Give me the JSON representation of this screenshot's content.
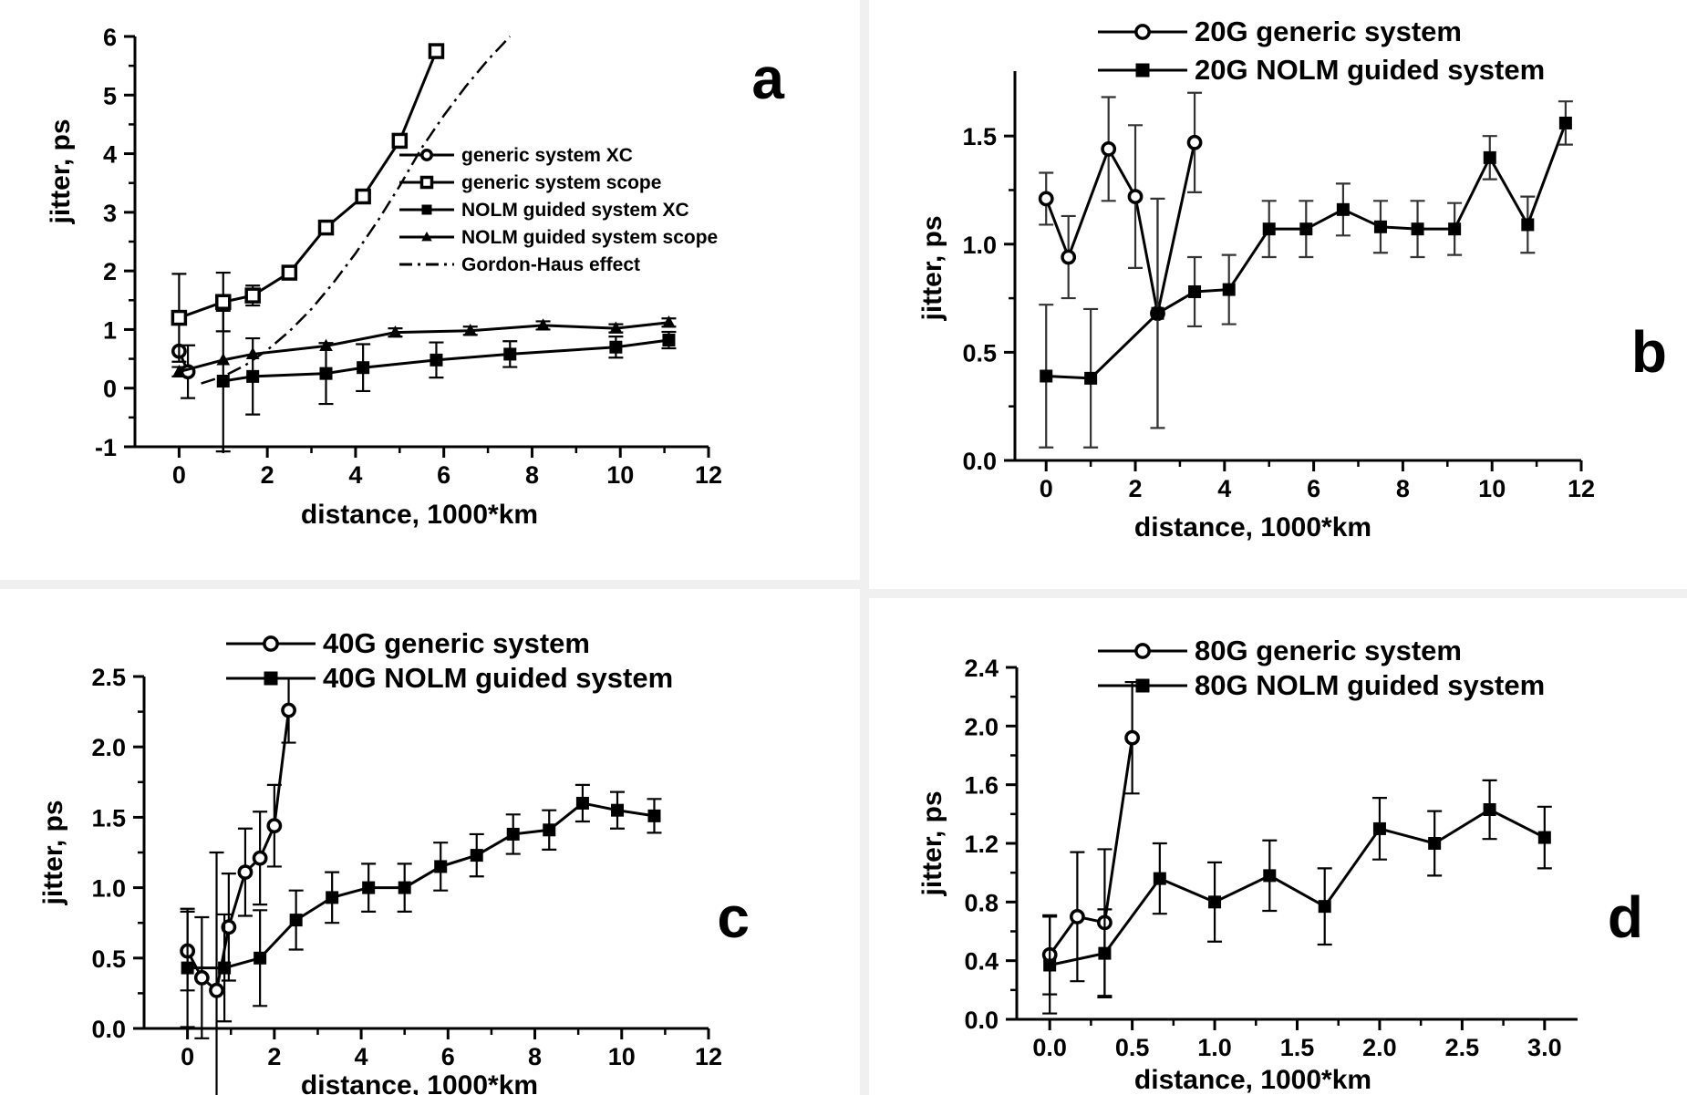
{
  "colors": {
    "ink": "#000000",
    "panel_gap": "#f0f0f0",
    "background": "#ffffff",
    "errorbar_b": "#333333"
  },
  "chart_data": [
    {
      "panel": "a",
      "type": "line",
      "xlabel": "distance, 1000*km",
      "ylabel": "jitter, ps",
      "xlim": [
        -1,
        12
      ],
      "ylim": [
        -1,
        6
      ],
      "xticks": [
        "0",
        "2",
        "4",
        "6",
        "8",
        "10",
        "12"
      ],
      "yticks": [
        "-1",
        "0",
        "1",
        "2",
        "3",
        "4",
        "5",
        "6"
      ],
      "legend_position": "center-right",
      "series": [
        {
          "name": "generic system XC",
          "marker": "circle-open",
          "x": [
            0,
            0.2
          ],
          "y": [
            0.63,
            0.28
          ],
          "err": [
            0.0,
            0.45
          ]
        },
        {
          "name": "generic system scope",
          "marker": "square-open",
          "x": [
            0,
            1,
            1.67,
            2.5,
            3.33,
            4.17,
            5.0,
            5.83
          ],
          "y": [
            1.2,
            1.47,
            1.58,
            1.97,
            2.74,
            3.27,
            4.22,
            5.75
          ],
          "err": [
            0.75,
            0.5,
            0.17,
            0,
            0,
            0,
            0,
            0
          ]
        },
        {
          "name": "NOLM guided system XC",
          "marker": "square-filled",
          "x": [
            1.0,
            1.67,
            3.33,
            4.17,
            5.83,
            7.5,
            9.9,
            11.1
          ],
          "y": [
            0.12,
            0.2,
            0.25,
            0.35,
            0.48,
            0.58,
            0.7,
            0.82
          ],
          "err": [
            1.2,
            0.65,
            0.52,
            0.4,
            0.3,
            0.22,
            0.18,
            0.14
          ]
        },
        {
          "name": "NOLM guided system scope",
          "marker": "triangle-filled",
          "x": [
            0,
            1.0,
            1.67,
            3.33,
            4.9,
            6.6,
            8.25,
            9.9,
            11.1
          ],
          "y": [
            0.28,
            0.48,
            0.58,
            0.72,
            0.95,
            0.98,
            1.07,
            1.02,
            1.12
          ],
          "err": [
            0.08,
            0,
            0,
            0,
            0.07,
            0.07,
            0.07,
            0.07,
            0.07
          ]
        },
        {
          "name": "Gordon-Haus effect",
          "style": "dash-dot",
          "x": [
            0.5,
            1.0,
            1.5,
            2.0,
            2.5,
            3.0,
            3.5,
            4.0,
            4.5,
            5.0,
            5.5,
            6.0,
            6.5,
            7.0,
            7.5
          ],
          "y": [
            0.08,
            0.2,
            0.39,
            0.65,
            0.97,
            1.35,
            1.8,
            2.3,
            2.85,
            3.45,
            4.1,
            4.65,
            5.15,
            5.6,
            6.0
          ]
        }
      ]
    },
    {
      "panel": "b",
      "type": "line",
      "xlabel": "distance, 1000*km",
      "ylabel": "jitter, ps",
      "xlim": [
        -0.7,
        12
      ],
      "ylim": [
        0,
        1.8
      ],
      "xticks": [
        "0",
        "2",
        "4",
        "6",
        "8",
        "10",
        "12"
      ],
      "yticks": [
        "0.0",
        "0.5",
        "1.0",
        "1.5"
      ],
      "legend_position": "top-right",
      "series": [
        {
          "name": "20G generic system",
          "marker": "circle-open",
          "x": [
            0,
            0.5,
            1.4,
            2.0,
            2.5,
            3.33
          ],
          "y": [
            1.21,
            0.94,
            1.44,
            1.22,
            0.68,
            1.47
          ],
          "err": [
            0.12,
            0.19,
            0.24,
            0.33,
            0.53,
            0.23
          ]
        },
        {
          "name": "20G NOLM guided system",
          "marker": "square-filled",
          "x": [
            0,
            1.0,
            2.5,
            3.33,
            4.1,
            5.0,
            5.83,
            6.66,
            7.5,
            8.33,
            9.16,
            9.95,
            10.8,
            11.65
          ],
          "y": [
            0.39,
            0.38,
            0.68,
            0.78,
            0.79,
            1.07,
            1.07,
            1.16,
            1.08,
            1.07,
            1.07,
            1.4,
            1.09,
            1.56
          ],
          "err": [
            0.33,
            0.32,
            0.53,
            0.16,
            0.16,
            0.13,
            0.13,
            0.12,
            0.12,
            0.13,
            0.12,
            0.1,
            0.13,
            0.1
          ]
        }
      ]
    },
    {
      "panel": "c",
      "type": "line",
      "xlabel": "distance, 1000*km",
      "ylabel": "jitter, ps",
      "xlim": [
        -1,
        12
      ],
      "ylim": [
        0,
        2.5
      ],
      "xticks": [
        "0",
        "2",
        "4",
        "6",
        "8",
        "10",
        "12"
      ],
      "yticks": [
        "0.0",
        "0.5",
        "1.0",
        "1.5",
        "2.0",
        "2.5"
      ],
      "legend_position": "top",
      "series": [
        {
          "name": "40G generic system",
          "marker": "circle-open",
          "x": [
            0,
            0.33,
            0.67,
            0.95,
            1.33,
            1.67,
            2.0,
            2.33
          ],
          "y": [
            0.55,
            0.36,
            0.27,
            0.72,
            1.11,
            1.21,
            1.44,
            2.26
          ],
          "err": [
            0.28,
            0.43,
            0.98,
            0.38,
            0.31,
            0.33,
            0.29,
            0.23
          ]
        },
        {
          "name": "40G NOLM guided system",
          "marker": "square-filled",
          "x": [
            0,
            0.85,
            1.67,
            2.5,
            3.33,
            4.17,
            5.0,
            5.83,
            6.66,
            7.5,
            8.33,
            9.1,
            9.9,
            10.75
          ],
          "y": [
            0.43,
            0.43,
            0.5,
            0.77,
            0.93,
            1.0,
            1.0,
            1.15,
            1.23,
            1.38,
            1.41,
            1.6,
            1.55,
            1.51
          ],
          "err": [
            0.42,
            0.38,
            0.34,
            0.21,
            0.18,
            0.17,
            0.17,
            0.17,
            0.15,
            0.14,
            0.14,
            0.13,
            0.13,
            0.12
          ]
        }
      ]
    },
    {
      "panel": "d",
      "type": "line",
      "xlabel": "distance, 1000*km",
      "ylabel": "jitter, ps",
      "xlim": [
        -0.2,
        3.2
      ],
      "ylim": [
        0,
        2.4
      ],
      "xticks": [
        "0.0",
        "0.5",
        "1.0",
        "1.5",
        "2.0",
        "2.5",
        "3.0"
      ],
      "yticks": [
        "0.0",
        "0.4",
        "0.8",
        "1.2",
        "1.6",
        "2.0",
        "2.4"
      ],
      "legend_position": "top-right",
      "series": [
        {
          "name": "80G generic system",
          "marker": "circle-open",
          "x": [
            0,
            0.167,
            0.333,
            0.5
          ],
          "y": [
            0.44,
            0.7,
            0.66,
            1.92
          ],
          "err": [
            0.27,
            0.44,
            0.5,
            0.38
          ]
        },
        {
          "name": "80G NOLM guided system",
          "marker": "square-filled",
          "x": [
            0,
            0.333,
            0.667,
            1.0,
            1.333,
            1.667,
            2.0,
            2.333,
            2.667,
            3.0
          ],
          "y": [
            0.37,
            0.45,
            0.96,
            0.8,
            0.98,
            0.77,
            1.3,
            1.2,
            1.43,
            1.24
          ],
          "err": [
            0.33,
            0.3,
            0.24,
            0.27,
            0.24,
            0.26,
            0.21,
            0.22,
            0.2,
            0.21
          ]
        }
      ]
    }
  ]
}
